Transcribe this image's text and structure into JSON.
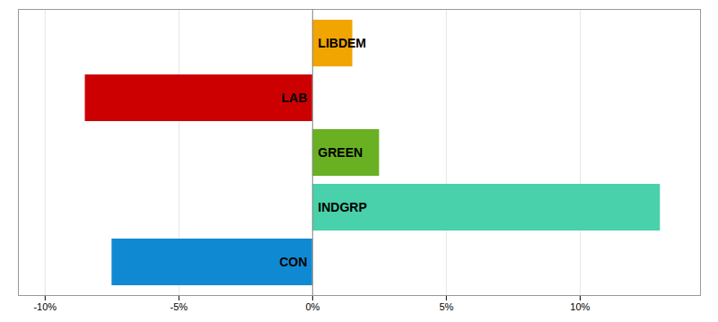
{
  "chart_data": {
    "type": "bar",
    "orientation": "horizontal",
    "categories": [
      "LIBDEM",
      "LAB",
      "GREEN",
      "INDGRP",
      "CON"
    ],
    "values": [
      1.5,
      -8.5,
      2.5,
      13.0,
      -7.5
    ],
    "colors": [
      "#F0A500",
      "#CC0000",
      "#6AB023",
      "#48D1AA",
      "#1089D3"
    ],
    "xlim": [
      -11,
      14.5
    ],
    "xticks": [
      {
        "value": -10,
        "label": "-10%"
      },
      {
        "value": -5,
        "label": "-5%"
      },
      {
        "value": 0,
        "label": "0%"
      },
      {
        "value": 5,
        "label": "5%"
      },
      {
        "value": 10,
        "label": "10%"
      }
    ],
    "grid": true,
    "tick_labels": "x"
  }
}
